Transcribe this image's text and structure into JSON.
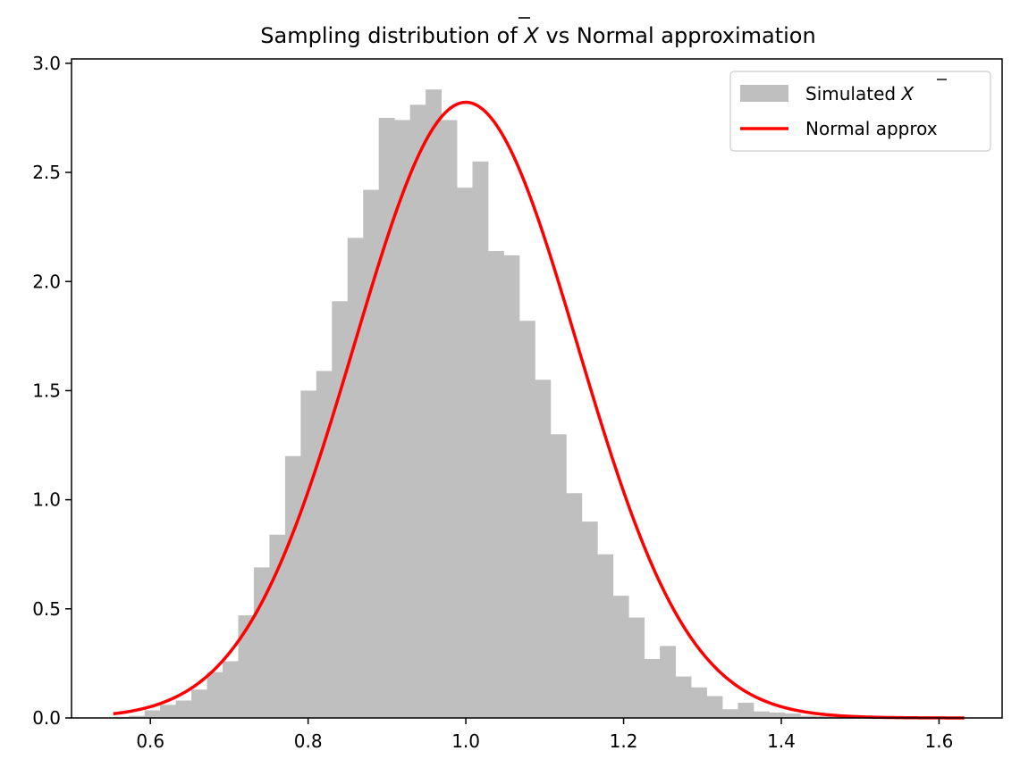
{
  "chart_data": {
    "type": "bar",
    "title_prefix": "Sampling distribution of ",
    "title_symbol": "X",
    "title_suffix": " vs Normal approximation",
    "xlim": [
      0.5,
      1.68
    ],
    "ylim": [
      0,
      3.02
    ],
    "xticks": [
      0.6,
      0.8,
      1.0,
      1.2,
      1.4,
      1.6
    ],
    "xtick_labels": [
      "0.6",
      "0.8",
      "1.0",
      "1.2",
      "1.4",
      "1.6"
    ],
    "yticks": [
      0,
      0.5,
      1.0,
      1.5,
      2.0,
      2.5,
      3.0
    ],
    "ytick_labels": [
      "0.0",
      "0.5",
      "1.0",
      "1.5",
      "2.0",
      "2.5",
      "3.0"
    ],
    "histogram": {
      "name_prefix": "Simulated ",
      "name_symbol": "X",
      "color": "#bfbfbf",
      "bin_edges": [
        0.553,
        0.5728,
        0.5926,
        0.6124,
        0.6322,
        0.652,
        0.6718,
        0.6916,
        0.7114,
        0.7312,
        0.751,
        0.7708,
        0.7906,
        0.8104,
        0.8302,
        0.85,
        0.8698,
        0.8896,
        0.9094,
        0.9292,
        0.949,
        0.9688,
        0.9886,
        1.0084,
        1.0282,
        1.048,
        1.0678,
        1.0876,
        1.1074,
        1.1272,
        1.147,
        1.1668,
        1.1866,
        1.2064,
        1.2262,
        1.246,
        1.2658,
        1.2856,
        1.3054,
        1.3252,
        1.345,
        1.3648,
        1.3846,
        1.4044,
        1.4242,
        1.444,
        1.4638,
        1.4836,
        1.5034,
        1.5232,
        1.543,
        1.5628,
        1.5826,
        1.6024,
        1.6222,
        1.642
      ],
      "values": [
        0.005,
        0.01,
        0.035,
        0.06,
        0.08,
        0.13,
        0.21,
        0.26,
        0.47,
        0.69,
        0.84,
        1.2,
        1.5,
        1.59,
        1.91,
        2.2,
        2.42,
        2.75,
        2.74,
        2.81,
        2.88,
        2.74,
        2.43,
        2.55,
        2.14,
        2.12,
        1.82,
        1.55,
        1.3,
        1.03,
        0.9,
        0.75,
        0.56,
        0.46,
        0.27,
        0.33,
        0.19,
        0.14,
        0.1,
        0.04,
        0.07,
        0.03,
        0.025,
        0.02,
        0.01,
        0.008,
        0.005,
        0.004,
        0.003,
        0.003,
        0.002,
        0.002,
        0.001,
        0.001,
        0.001
      ]
    },
    "normal_curve": {
      "name": "Normal approx",
      "color": "#ff0000",
      "mean": 1.0,
      "sd": 0.1414,
      "x_range": [
        0.553,
        1.632
      ]
    },
    "legend_position": "top-right",
    "grid": false
  }
}
